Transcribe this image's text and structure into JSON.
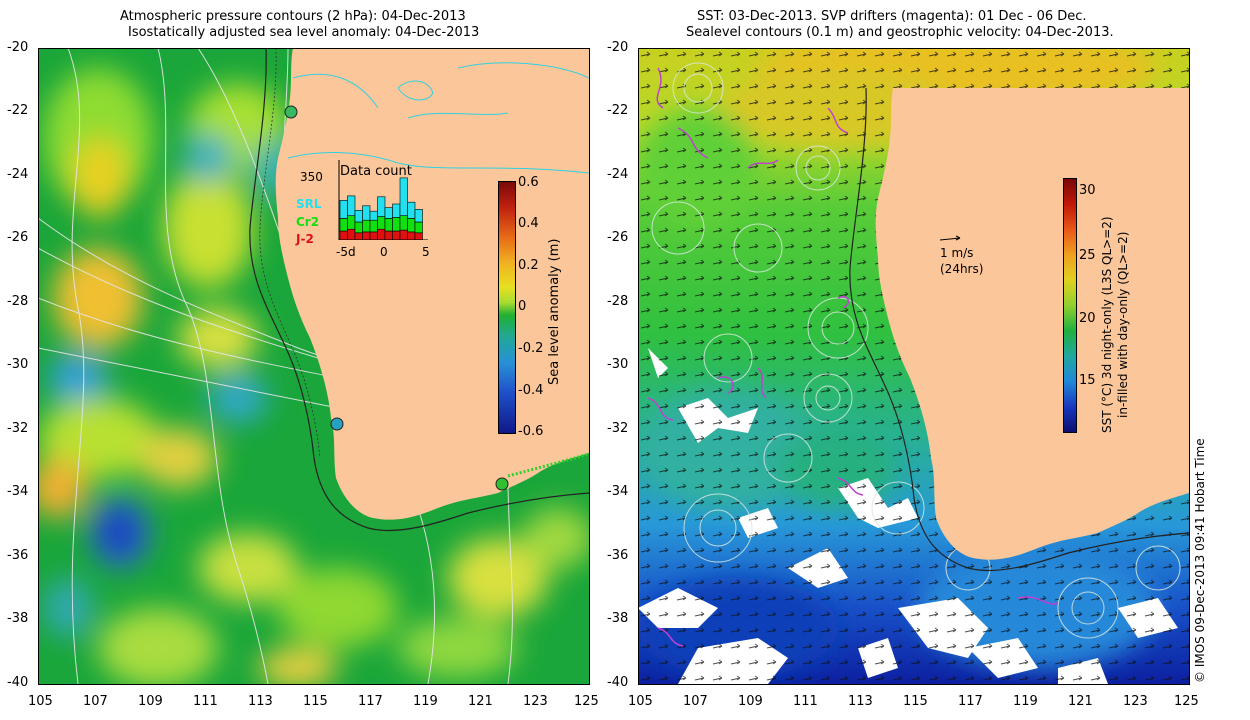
{
  "left_panel": {
    "title_line1": "Atmospheric pressure contours (2 hPa): 04-Dec-2013",
    "title_line2": "Isostatically adjusted sea level anomaly: 04-Dec-2013",
    "lat_ticks": [
      "-20",
      "-22",
      "-24",
      "-26",
      "-28",
      "-30",
      "-32",
      "-34",
      "-36",
      "-38",
      "-40"
    ],
    "lon_ticks": [
      "105",
      "107",
      "109",
      "111",
      "113",
      "115",
      "117",
      "119",
      "121",
      "123",
      "125"
    ],
    "inset": {
      "title": "Data count",
      "max_label": "350",
      "x_ticks": [
        "-5d",
        "0",
        "5"
      ],
      "legend": [
        {
          "label": "SRL",
          "color": "#22e0f0"
        },
        {
          "label": "Cr2",
          "color": "#10e010"
        },
        {
          "label": "J-2",
          "color": "#e01010"
        }
      ],
      "bars": [
        {
          "srl": 2.0,
          "cr2": 1.4,
          "j2": 1.0
        },
        {
          "srl": 2.2,
          "cr2": 1.5,
          "j2": 1.2
        },
        {
          "srl": 1.3,
          "cr2": 1.2,
          "j2": 0.8
        },
        {
          "srl": 1.6,
          "cr2": 1.3,
          "j2": 0.9
        },
        {
          "srl": 1.0,
          "cr2": 1.3,
          "j2": 0.9
        },
        {
          "srl": 2.2,
          "cr2": 1.4,
          "j2": 1.2
        },
        {
          "srl": 1.2,
          "cr2": 1.4,
          "j2": 1.0
        },
        {
          "srl": 1.5,
          "cr2": 1.5,
          "j2": 1.0
        },
        {
          "srl": 4.2,
          "cr2": 1.6,
          "j2": 1.1
        },
        {
          "srl": 1.8,
          "cr2": 1.5,
          "j2": 0.9
        },
        {
          "srl": 1.4,
          "cr2": 1.2,
          "j2": 0.8
        }
      ]
    },
    "colorbar": {
      "label": "Sea level anomaly (m)",
      "ticks": [
        "0.6",
        "0.4",
        "0.2",
        "0",
        "-0.2",
        "-0.4",
        "-0.6"
      ]
    },
    "stations": [
      {
        "lon": 114.2,
        "lat": -22.0,
        "color": "#38b860"
      },
      {
        "lon": 115.9,
        "lat": -31.8,
        "color": "#28a0c0"
      },
      {
        "lon": 121.9,
        "lat": -33.6,
        "color": "#30c030"
      }
    ]
  },
  "right_panel": {
    "title_line1": "SST: 03-Dec-2013. SVP drifters (magenta): 01 Dec - 06 Dec.",
    "title_line2": "Sealevel contours (0.1 m) and geostrophic velocity: 04-Dec-2013.",
    "lat_ticks": [
      "-20",
      "-22",
      "-24",
      "-26",
      "-28",
      "-30",
      "-32",
      "-34",
      "-36",
      "-38",
      "-40"
    ],
    "lon_ticks": [
      "105",
      "107",
      "109",
      "111",
      "113",
      "115",
      "117",
      "119",
      "121",
      "123",
      "125"
    ],
    "scale_label_line1": "1 m/s",
    "scale_label_line2": "(24hrs)",
    "colorbar": {
      "label_line1": "SST (°C)  3d night-only (L3S QL>=2)",
      "label_line2": "in-filled with day-only (QL>=2)",
      "ticks": [
        "30",
        "25",
        "20",
        "15"
      ]
    }
  },
  "credit": "© IMOS 09-Dec-2013 09:41 Hobart Time"
}
